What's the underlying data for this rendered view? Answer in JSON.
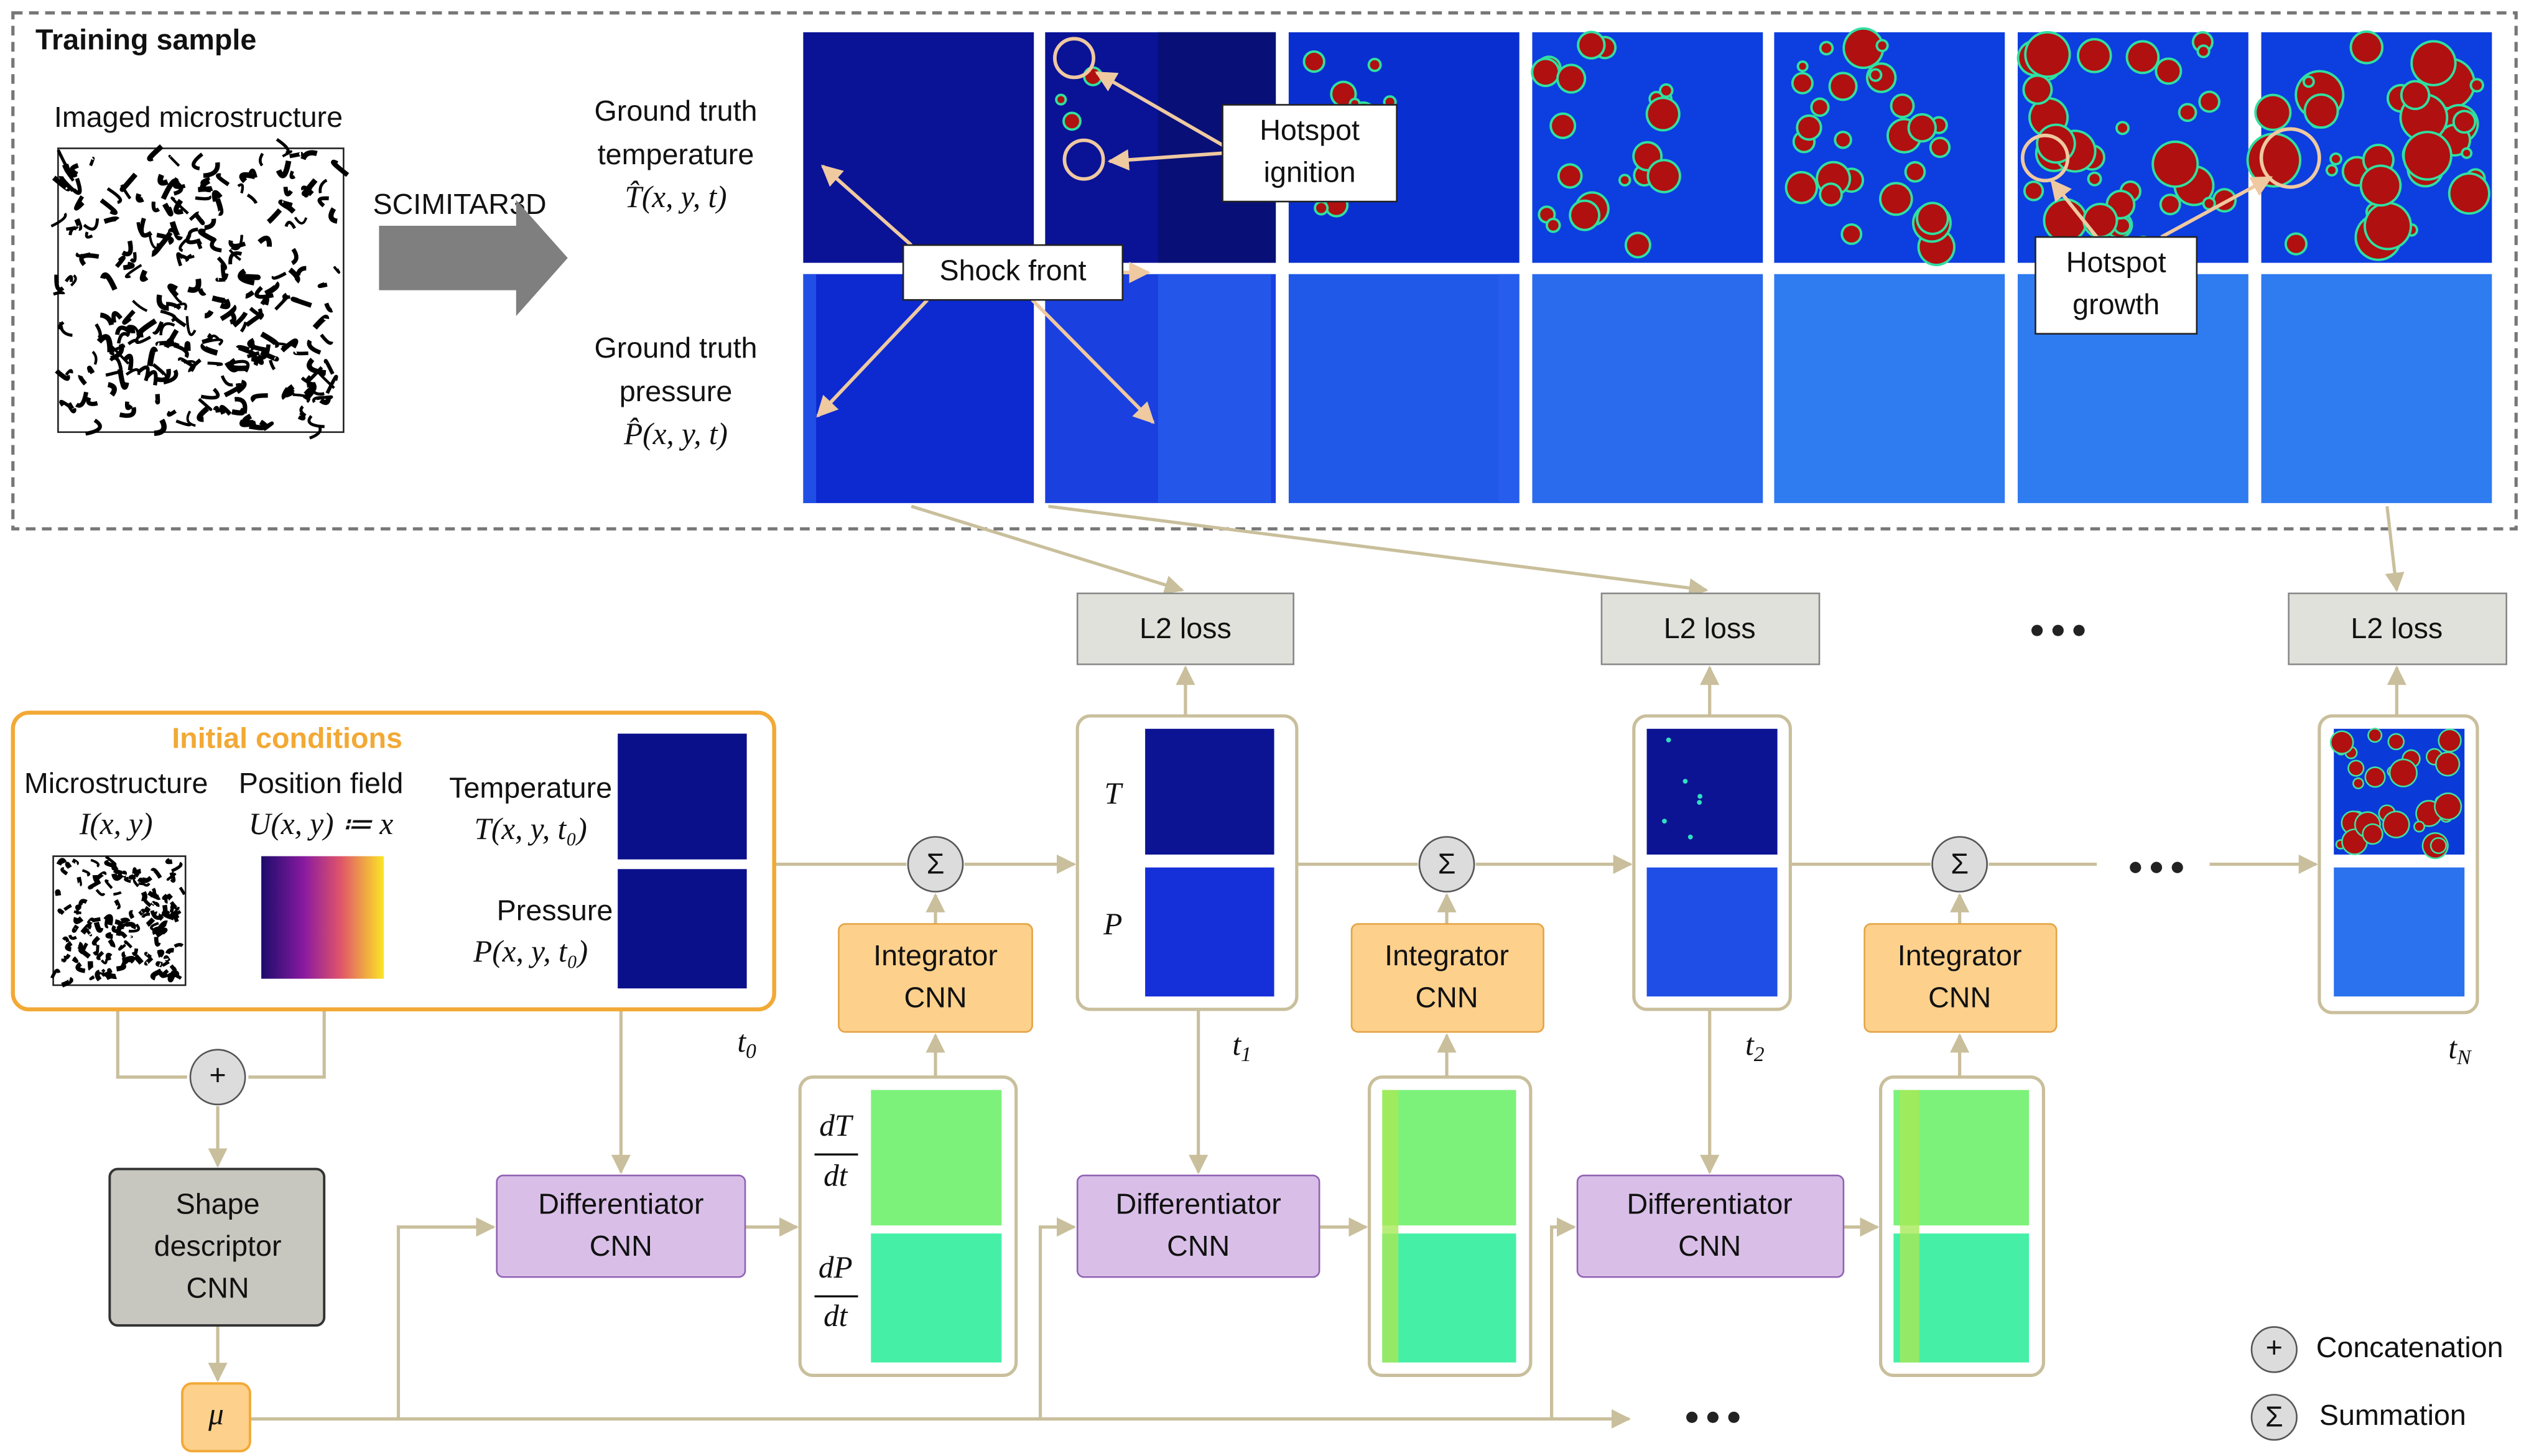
{
  "training_sample": {
    "title": "Training sample",
    "microstructure_label": "Imaged microstructure",
    "arrow_label": "SCIMITAR3D",
    "temperature_label": [
      "Ground truth",
      "temperature",
      "T̂(x, y, t)"
    ],
    "pressure_label": [
      "Ground truth",
      "pressure",
      "P̂(x, y, t)"
    ],
    "shock_front": "Shock front",
    "hotspot_ignition": [
      "Hotspot",
      "ignition"
    ],
    "hotspot_growth": [
      "Hotspot",
      "growth"
    ]
  },
  "loss_boxes": [
    "L2 loss",
    "L2 loss",
    "L2 loss"
  ],
  "initial_conditions": {
    "title": "Initial conditions",
    "microstructure": [
      "Microstructure",
      "I(x, y)"
    ],
    "position_field": [
      "Position field",
      "U(x, y) ≔ x"
    ],
    "temperature": [
      "Temperature",
      "T(x, y, t₀)"
    ],
    "pressure": [
      "Pressure",
      "P(x, y, t₀)"
    ]
  },
  "time_labels": [
    {
      "t": "t",
      "sub": "0"
    },
    {
      "t": "t",
      "sub": "1"
    },
    {
      "t": "t",
      "sub": "2"
    },
    {
      "t": "t",
      "sub": "N"
    }
  ],
  "state_labels": [
    "T",
    "P"
  ],
  "derivative_labels": [
    {
      "num": "dT",
      "den": "dt"
    },
    {
      "num": "dP",
      "den": "dt"
    }
  ],
  "integrator": [
    "Integrator",
    "CNN"
  ],
  "differentiator": [
    "Differentiator",
    "CNN"
  ],
  "shape_descriptor": [
    "Shape",
    "descriptor",
    "CNN"
  ],
  "mu": "μ",
  "symbols": {
    "sum": "Σ",
    "concat": "+"
  },
  "legend": {
    "concatenation": "Concatenation",
    "summation": "Summation"
  }
}
